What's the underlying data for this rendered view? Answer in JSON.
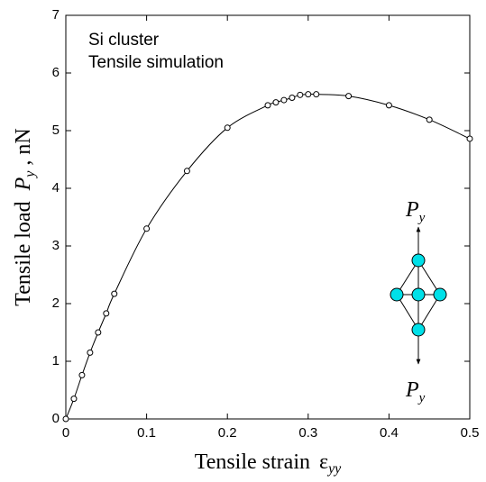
{
  "chart_data": {
    "type": "line",
    "annotations": [
      "Si cluster",
      "Tensile simulation"
    ],
    "x_label": {
      "text": "Tensile strain",
      "symbol": "ε",
      "subscript": "yy"
    },
    "y_label": {
      "text": "Tensile load",
      "symbol": "P",
      "subscript": "y",
      "unit": ", nN"
    },
    "inset_labels": [
      {
        "symbol": "P",
        "subscript": "y"
      },
      {
        "symbol": "P",
        "subscript": "y"
      }
    ],
    "x": [
      0,
      0.01,
      0.02,
      0.03,
      0.04,
      0.05,
      0.06,
      0.1,
      0.15,
      0.2,
      0.25,
      0.26,
      0.27,
      0.28,
      0.29,
      0.3,
      0.31,
      0.35,
      0.4,
      0.45,
      0.5
    ],
    "series": [
      {
        "color": "#000000",
        "values": [
          0,
          0.35,
          0.76,
          1.15,
          1.5,
          1.83,
          2.17,
          3.3,
          4.3,
          5.05,
          5.44,
          5.49,
          5.53,
          5.57,
          5.62,
          5.63,
          5.63,
          5.6,
          5.44,
          5.19,
          4.86
        ]
      }
    ],
    "xlim": [
      0,
      0.5
    ],
    "ylim": [
      0,
      7
    ],
    "xticks": [
      0,
      0.1,
      0.2,
      0.3,
      0.4,
      0.5
    ],
    "yticks": [
      0,
      1,
      2,
      3,
      4,
      5,
      6,
      7
    ]
  }
}
